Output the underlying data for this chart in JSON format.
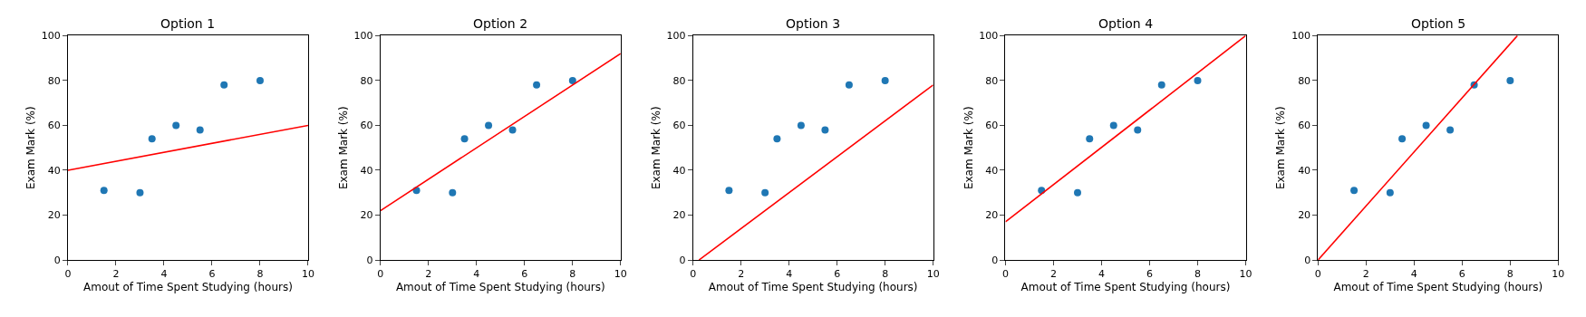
{
  "chart_data": [
    {
      "type": "scatter",
      "title": "Option 1",
      "xlabel": "Amout of Time Spent Studying (hours)",
      "ylabel": "Exam Mark (%)",
      "xlim": [
        0,
        10
      ],
      "ylim": [
        0,
        100
      ],
      "xticks": [
        0,
        2,
        4,
        6,
        8,
        10
      ],
      "yticks": [
        0,
        20,
        40,
        60,
        80,
        100
      ],
      "series": [
        {
          "marker": "circle",
          "color": "#1f77b4",
          "x": [
            1.5,
            3,
            3.5,
            4.5,
            5.5,
            6.5,
            8
          ],
          "values": [
            31,
            30,
            54,
            60,
            58,
            78,
            80
          ]
        },
        {
          "type": "line",
          "color": "#ff0000",
          "x": [
            0,
            10
          ],
          "values": [
            40,
            60
          ]
        }
      ]
    },
    {
      "type": "scatter",
      "title": "Option 2",
      "xlabel": "Amout of Time Spent Studying (hours)",
      "ylabel": "Exam Mark (%)",
      "xlim": [
        0,
        10
      ],
      "ylim": [
        0,
        100
      ],
      "xticks": [
        0,
        2,
        4,
        6,
        8,
        10
      ],
      "yticks": [
        0,
        20,
        40,
        60,
        80,
        100
      ],
      "series": [
        {
          "marker": "circle",
          "color": "#1f77b4",
          "x": [
            1.5,
            3,
            3.5,
            4.5,
            5.5,
            6.5,
            8
          ],
          "values": [
            31,
            30,
            54,
            60,
            58,
            78,
            80
          ]
        },
        {
          "type": "line",
          "color": "#ff0000",
          "x": [
            0,
            10
          ],
          "values": [
            22,
            92
          ]
        }
      ]
    },
    {
      "type": "scatter",
      "title": "Option 3",
      "xlabel": "Amout of Time Spent Studying (hours)",
      "ylabel": "Exam Mark (%)",
      "xlim": [
        0,
        10
      ],
      "ylim": [
        0,
        100
      ],
      "xticks": [
        0,
        2,
        4,
        6,
        8,
        10
      ],
      "yticks": [
        0,
        20,
        40,
        60,
        80,
        100
      ],
      "series": [
        {
          "marker": "circle",
          "color": "#1f77b4",
          "x": [
            1.5,
            3,
            3.5,
            4.5,
            5.5,
            6.5,
            8
          ],
          "values": [
            31,
            30,
            54,
            60,
            58,
            78,
            80
          ]
        },
        {
          "type": "line",
          "color": "#ff0000",
          "x": [
            0.25,
            10
          ],
          "values": [
            0,
            78
          ]
        }
      ]
    },
    {
      "type": "scatter",
      "title": "Option 4",
      "xlabel": "Amout of Time Spent Studying (hours)",
      "ylabel": "Exam Mark (%)",
      "xlim": [
        0,
        10
      ],
      "ylim": [
        0,
        100
      ],
      "xticks": [
        0,
        2,
        4,
        6,
        8,
        10
      ],
      "yticks": [
        0,
        20,
        40,
        60,
        80,
        100
      ],
      "series": [
        {
          "marker": "circle",
          "color": "#1f77b4",
          "x": [
            1.5,
            3,
            3.5,
            4.5,
            5.5,
            6.5,
            8
          ],
          "values": [
            31,
            30,
            54,
            60,
            58,
            78,
            80
          ]
        },
        {
          "type": "line",
          "color": "#ff0000",
          "x": [
            0,
            10
          ],
          "values": [
            17,
            100
          ]
        }
      ]
    },
    {
      "type": "scatter",
      "title": "Option 5",
      "xlabel": "Amout of Time Spent Studying (hours)",
      "ylabel": "Exam Mark (%)",
      "xlim": [
        0,
        10
      ],
      "ylim": [
        0,
        100
      ],
      "xticks": [
        0,
        2,
        4,
        6,
        8,
        10
      ],
      "yticks": [
        0,
        20,
        40,
        60,
        80,
        100
      ],
      "series": [
        {
          "marker": "circle",
          "color": "#1f77b4",
          "x": [
            1.5,
            3,
            3.5,
            4.5,
            5.5,
            6.5,
            8
          ],
          "values": [
            31,
            30,
            54,
            60,
            58,
            78,
            80
          ]
        },
        {
          "type": "line",
          "color": "#ff0000",
          "x": [
            0,
            8.3
          ],
          "values": [
            0,
            100
          ]
        }
      ]
    }
  ]
}
